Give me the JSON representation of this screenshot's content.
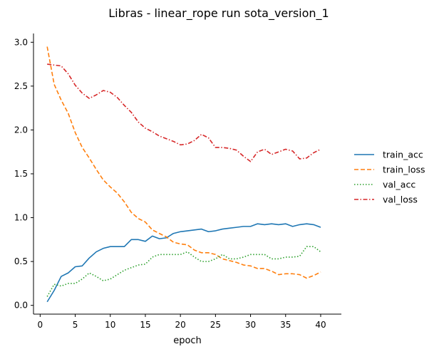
{
  "chart_data": {
    "type": "line",
    "title": "Libras - linear_rope run sota_version_1",
    "xlabel": "epoch",
    "ylabel": "",
    "xlim": [
      -0.95,
      42.95
    ],
    "ylim": [
      -0.1,
      3.1
    ],
    "xticks": [
      "0",
      "5",
      "10",
      "15",
      "20",
      "25",
      "30",
      "35",
      "40"
    ],
    "yticks": [
      "0.0",
      "0.5",
      "1.0",
      "1.5",
      "2.0",
      "2.5",
      "3.0"
    ],
    "grid": false,
    "legend_position": "right",
    "x": [
      1,
      2,
      3,
      4,
      5,
      6,
      7,
      8,
      9,
      10,
      11,
      12,
      13,
      14,
      15,
      16,
      17,
      18,
      19,
      20,
      21,
      22,
      23,
      24,
      25,
      26,
      27,
      28,
      29,
      30,
      31,
      32,
      33,
      34,
      35,
      36,
      37,
      38,
      39,
      40
    ],
    "series": [
      {
        "name": "train_acc",
        "color": "#1f77b4",
        "style": "solid",
        "values": [
          0.04,
          0.17,
          0.33,
          0.37,
          0.44,
          0.45,
          0.54,
          0.61,
          0.65,
          0.67,
          0.67,
          0.67,
          0.75,
          0.75,
          0.73,
          0.79,
          0.76,
          0.77,
          0.82,
          0.84,
          0.85,
          0.86,
          0.87,
          0.84,
          0.85,
          0.87,
          0.88,
          0.89,
          0.9,
          0.9,
          0.93,
          0.92,
          0.93,
          0.92,
          0.93,
          0.9,
          0.92,
          0.93,
          0.92,
          0.89
        ]
      },
      {
        "name": "train_loss",
        "color": "#ff7f0e",
        "style": "dashed",
        "values": [
          2.95,
          2.52,
          2.34,
          2.19,
          1.97,
          1.8,
          1.68,
          1.55,
          1.43,
          1.35,
          1.28,
          1.18,
          1.06,
          0.99,
          0.95,
          0.86,
          0.82,
          0.78,
          0.72,
          0.7,
          0.69,
          0.63,
          0.6,
          0.6,
          0.58,
          0.53,
          0.51,
          0.49,
          0.46,
          0.45,
          0.42,
          0.42,
          0.39,
          0.35,
          0.36,
          0.36,
          0.35,
          0.31,
          0.34,
          0.38
        ]
      },
      {
        "name": "val_acc",
        "color": "#2ca02c",
        "style": "dotted",
        "values": [
          0.1,
          0.24,
          0.22,
          0.25,
          0.25,
          0.3,
          0.37,
          0.33,
          0.28,
          0.3,
          0.35,
          0.4,
          0.43,
          0.46,
          0.47,
          0.55,
          0.58,
          0.58,
          0.58,
          0.58,
          0.61,
          0.55,
          0.5,
          0.5,
          0.53,
          0.58,
          0.53,
          0.53,
          0.55,
          0.58,
          0.58,
          0.58,
          0.53,
          0.53,
          0.55,
          0.55,
          0.56,
          0.67,
          0.67,
          0.61
        ]
      },
      {
        "name": "val_loss",
        "color": "#d62728",
        "style": "dashdot",
        "values": [
          2.75,
          2.74,
          2.73,
          2.64,
          2.51,
          2.42,
          2.36,
          2.4,
          2.45,
          2.43,
          2.37,
          2.28,
          2.2,
          2.09,
          2.02,
          1.98,
          1.93,
          1.9,
          1.87,
          1.83,
          1.84,
          1.88,
          1.95,
          1.91,
          1.8,
          1.8,
          1.79,
          1.77,
          1.7,
          1.64,
          1.75,
          1.78,
          1.72,
          1.75,
          1.78,
          1.76,
          1.67,
          1.68,
          1.74,
          1.78
        ]
      }
    ]
  }
}
